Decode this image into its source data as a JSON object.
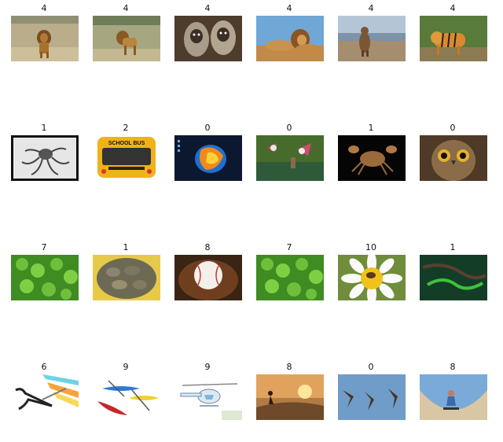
{
  "rows": [
    {
      "cells": [
        {
          "label": "4",
          "subject": "lion walking on savanna",
          "icon": "lion-icon"
        },
        {
          "label": "4",
          "subject": "lion walking on grassland",
          "icon": "lion-icon"
        },
        {
          "label": "4",
          "subject": "monkeys portrait",
          "icon": "monkey-icon"
        },
        {
          "label": "4",
          "subject": "lion and lioness resting",
          "icon": "lion-icon"
        },
        {
          "label": "4",
          "subject": "bear standing on shore",
          "icon": "bear-icon"
        },
        {
          "label": "4",
          "subject": "tiger walking",
          "icon": "tiger-icon"
        }
      ]
    },
    {
      "cells": [
        {
          "label": "1",
          "subject": "octopus black and white photo",
          "icon": "octopus-icon"
        },
        {
          "label": "2",
          "subject": "school bus rear",
          "icon": "bus-icon",
          "text": "SCHOOL BUS"
        },
        {
          "label": "0",
          "subject": "colorful abstract wallpaper",
          "icon": "abstract-icon"
        },
        {
          "label": "0",
          "subject": "birds over water",
          "icon": "bird-icon"
        },
        {
          "label": "1",
          "subject": "crab on black background",
          "icon": "crab-icon"
        },
        {
          "label": "0",
          "subject": "owl face",
          "icon": "owl-icon"
        }
      ]
    },
    {
      "cells": [
        {
          "label": "7",
          "subject": "clover leaves",
          "icon": "clover-icon"
        },
        {
          "label": "1",
          "subject": "crabs in basket",
          "icon": "crab-basket-icon"
        },
        {
          "label": "8",
          "subject": "baseball in glove",
          "icon": "baseball-icon"
        },
        {
          "label": "7",
          "subject": "clover leaves",
          "icon": "clover-icon"
        },
        {
          "label": "10",
          "subject": "bee on daisy",
          "icon": "bee-flower-icon"
        },
        {
          "label": "1",
          "subject": "green snake on branch",
          "icon": "snake-icon"
        }
      ]
    },
    {
      "cells": [
        {
          "label": "6",
          "subject": "scissors illustration",
          "icon": "scissors-icon"
        },
        {
          "label": "9",
          "subject": "kayaks and canoe illustration",
          "icon": "kayak-icon"
        },
        {
          "label": "9",
          "subject": "helicopter illustration",
          "icon": "helicopter-icon"
        },
        {
          "label": "8",
          "subject": "skateboarder at sunset",
          "icon": "skateboard-icon"
        },
        {
          "label": "0",
          "subject": "swifts flying",
          "icon": "swift-icon"
        },
        {
          "label": "8",
          "subject": "skateboarder in bowl",
          "icon": "skateboard-bowl-icon"
        }
      ]
    }
  ]
}
